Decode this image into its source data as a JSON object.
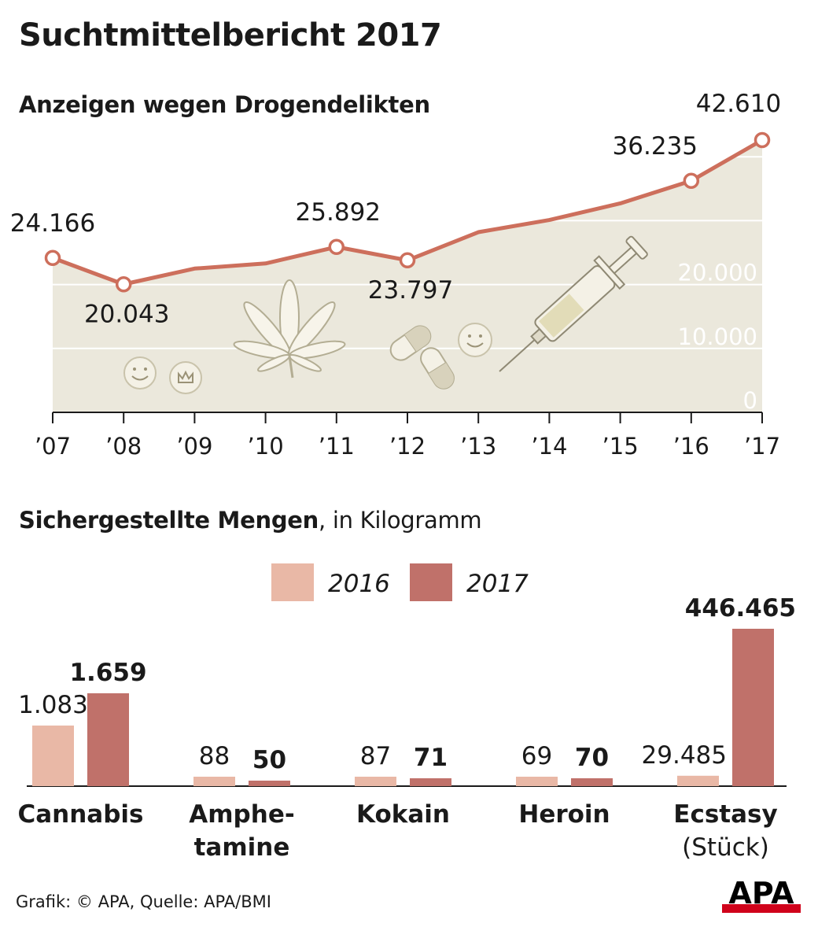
{
  "title": "Suchtmittelbericht 2017",
  "subtitle_line": "Anzeigen wegen Drogendelikten",
  "subtitle_bar_bold": "Sichergestellte Mengen",
  "subtitle_bar_rest": ", in Kilogramm",
  "source": "Grafik: © APA, Quelle: APA/BMI",
  "logo_text": "APA",
  "colors": {
    "line": "#cd6f5c",
    "area": "#ebe8dc",
    "bar_2016": "#e9b8a6",
    "bar_2017": "#c0716a",
    "grid": "#ffffff",
    "logo_red": "#d0021b"
  },
  "chart_data": [
    {
      "type": "line",
      "title": "Anzeigen wegen Drogendelikten",
      "x": [
        "’07",
        "’08",
        "’09",
        "’10",
        "’11",
        "’12",
        "’13",
        "’14",
        "’15",
        "’16",
        "’17"
      ],
      "series": [
        {
          "values": [
            24166,
            20043,
            22500,
            23300,
            25892,
            23797,
            28200,
            30100,
            32700,
            36235,
            42610
          ]
        }
      ],
      "labels": [
        {
          "index": 0,
          "text": "24.166"
        },
        {
          "index": 1,
          "text": "20.043"
        },
        {
          "index": 4,
          "text": "25.892"
        },
        {
          "index": 5,
          "text": "23.797"
        },
        {
          "index": 9,
          "text": "36.235"
        },
        {
          "index": 10,
          "text": "42.610"
        }
      ],
      "yticks": [
        {
          "value": 0,
          "label": "0"
        },
        {
          "value": 10000,
          "label": "10.000"
        },
        {
          "value": 20000,
          "label": "20.000"
        },
        {
          "value": 30000,
          "label": ""
        },
        {
          "value": 40000,
          "label": ""
        }
      ],
      "ylim": [
        0,
        42610
      ],
      "grid": true,
      "area_fill": true,
      "icons": [
        "smiley-pill-icon",
        "crown-pill-icon",
        "cannabis-leaf-icon",
        "capsule-icon",
        "capsule-icon",
        "smiley-pill-icon",
        "syringe-icon"
      ]
    },
    {
      "type": "bar",
      "title": "Sichergestellte Mengen, in Kilogramm",
      "legend": [
        "2016",
        "2017"
      ],
      "legend_position": "top-center",
      "categories": [
        {
          "lines": [
            "Cannabis"
          ]
        },
        {
          "lines": [
            "Amphe-",
            "tamine"
          ]
        },
        {
          "lines": [
            "Kokain"
          ]
        },
        {
          "lines": [
            "Heroin"
          ]
        },
        {
          "lines": [
            "Ecstasy",
            "(Stück)"
          ]
        }
      ],
      "series": [
        {
          "name": "2016",
          "values": [
            1083,
            88,
            87,
            69,
            29485
          ],
          "labels": [
            "1.083",
            "88",
            "87",
            "69",
            "29.485"
          ],
          "fill": [
            0.385,
            0.06,
            0.06,
            0.06,
            0.066
          ]
        },
        {
          "name": "2017",
          "values": [
            1659,
            50,
            71,
            70,
            446465
          ],
          "labels": [
            "1.659",
            "50",
            "71",
            "70",
            "446.465"
          ],
          "fill": [
            0.59,
            0.035,
            0.05,
            0.05,
            1.0
          ]
        }
      ]
    }
  ]
}
